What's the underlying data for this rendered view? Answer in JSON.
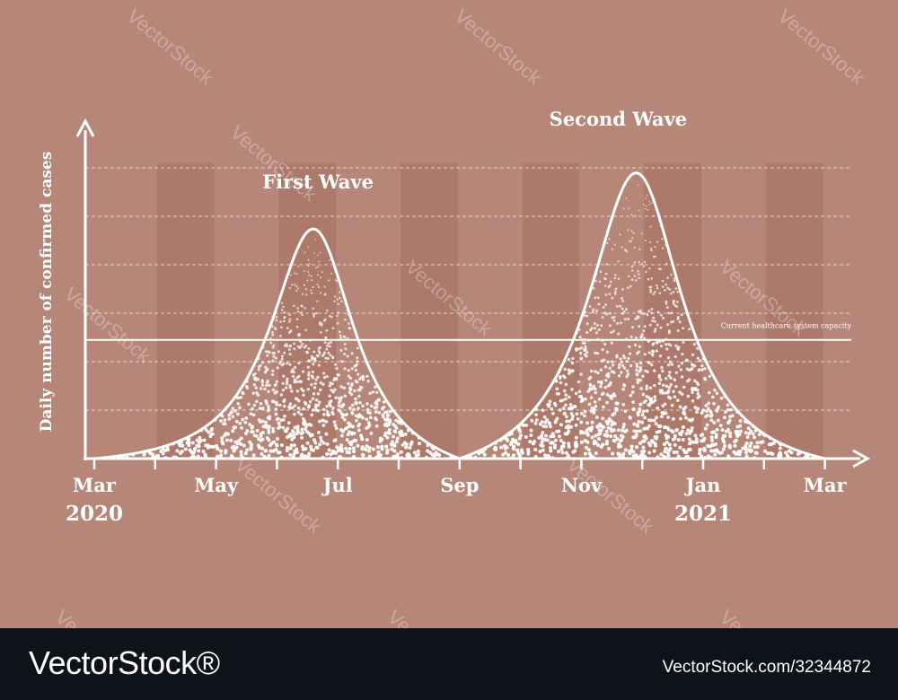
{
  "chart_data": {
    "type": "area",
    "title": "",
    "ylabel": "Daily number of confirmed cases",
    "xlabel": "",
    "x_ticks": [
      "Mar",
      "May",
      "Jul",
      "Sep",
      "Nov",
      "Jan",
      "Mar"
    ],
    "x_tick_months": [
      0,
      2,
      4,
      6,
      8,
      10,
      12
    ],
    "year_labels": [
      {
        "label": "2020",
        "month": 0
      },
      {
        "label": "2021",
        "month": 10
      }
    ],
    "xlim": [
      0,
      12.5
    ],
    "ylim": [
      0,
      6.5
    ],
    "grid": "horizontal dashed",
    "series": [
      {
        "name": "First Wave",
        "peak_month": 3.6,
        "peak_value": 5.2,
        "width_left": 0.95,
        "width_right": 0.9
      },
      {
        "name": "Second Wave",
        "peak_month": 8.9,
        "peak_value": 6.5,
        "width_left": 1.05,
        "width_right": 1.0
      }
    ],
    "reference_line": {
      "label": "Current healthcare system capacity",
      "value": 2.45
    },
    "colors": {
      "background": "#b68778",
      "band": "#a87467",
      "line": "#ffffff"
    }
  },
  "footer": {
    "logo": "VectorStock®",
    "image_id": "VectorStock.com/32344872"
  },
  "watermark": "VectorStock"
}
